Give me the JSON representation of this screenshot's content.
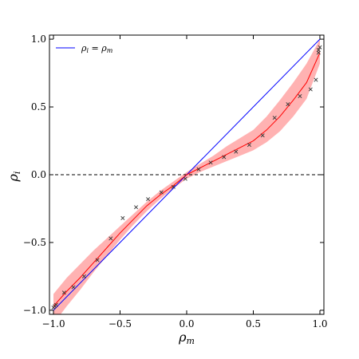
{
  "chart_data": {
    "type": "line",
    "title": "",
    "xlabel": "ρ_m",
    "ylabel": "ρ_i",
    "xlim": [
      -1.03,
      1.03
    ],
    "ylim": [
      -1.03,
      1.03
    ],
    "grid": false,
    "legend_placement": "top-left",
    "xticks": [
      -1.0,
      -0.5,
      0.0,
      0.5,
      1.0
    ],
    "xtick_labels": [
      "−1.0",
      "−0.5",
      "0.0",
      "0.5",
      "1.0"
    ],
    "yticks": [
      -1.0,
      -0.5,
      0.0,
      0.5,
      1.0
    ],
    "ytick_labels": [
      "−1.0",
      "−0.5",
      "0.0",
      "0.5",
      "1.0"
    ],
    "series": [
      {
        "name": "ρ_i = ρ_m",
        "kind": "line",
        "color": "#0000ff",
        "x": [
          -1.0,
          1.0
        ],
        "y": [
          -1.0,
          1.0
        ]
      },
      {
        "kind": "line",
        "color": "#ff0000",
        "x": [
          -1.0,
          -0.9,
          -0.8,
          -0.7,
          -0.6,
          -0.5,
          -0.4,
          -0.3,
          -0.2,
          -0.1,
          0.0,
          0.1,
          0.2,
          0.3,
          0.4,
          0.5,
          0.6,
          0.7,
          0.8,
          0.9,
          1.0
        ],
        "y": [
          -0.97,
          -0.86,
          -0.76,
          -0.65,
          -0.54,
          -0.43,
          -0.33,
          -0.23,
          -0.15,
          -0.08,
          0.0,
          0.05,
          0.1,
          0.15,
          0.2,
          0.25,
          0.33,
          0.43,
          0.55,
          0.68,
          0.9
        ]
      },
      {
        "kind": "band",
        "color": "#ff0000",
        "x": [
          -1.0,
          -0.9,
          -0.8,
          -0.7,
          -0.6,
          -0.5,
          -0.4,
          -0.3,
          -0.2,
          -0.1,
          0.0,
          0.1,
          0.2,
          0.3,
          0.4,
          0.5,
          0.6,
          0.7,
          0.8,
          0.9,
          1.0
        ],
        "y_low": [
          -1.1,
          -0.97,
          -0.85,
          -0.72,
          -0.6,
          -0.48,
          -0.37,
          -0.27,
          -0.18,
          -0.1,
          -0.03,
          0.02,
          0.06,
          0.1,
          0.14,
          0.18,
          0.24,
          0.32,
          0.43,
          0.56,
          0.82
        ],
        "y_high": [
          -0.88,
          -0.76,
          -0.66,
          -0.56,
          -0.47,
          -0.38,
          -0.29,
          -0.2,
          -0.12,
          -0.05,
          0.02,
          0.08,
          0.14,
          0.21,
          0.27,
          0.33,
          0.43,
          0.55,
          0.68,
          0.82,
          1.0
        ]
      },
      {
        "kind": "scatter",
        "marker": "x",
        "color": "#333333",
        "x": [
          -1.0,
          -0.99,
          -0.98,
          -0.92,
          -0.85,
          -0.77,
          -0.67,
          -0.57,
          -0.48,
          -0.38,
          -0.29,
          -0.19,
          -0.1,
          -0.01,
          0.09,
          0.18,
          0.28,
          0.37,
          0.47,
          0.57,
          0.66,
          0.76,
          0.85,
          0.93,
          0.97,
          0.99,
          0.99,
          1.0
        ],
        "y": [
          -0.98,
          -0.97,
          -0.96,
          -0.87,
          -0.83,
          -0.75,
          -0.63,
          -0.47,
          -0.32,
          -0.24,
          -0.18,
          -0.13,
          -0.09,
          -0.03,
          0.04,
          0.09,
          0.13,
          0.17,
          0.22,
          0.29,
          0.42,
          0.52,
          0.58,
          0.63,
          0.7,
          0.9,
          0.92,
          0.94
        ]
      },
      {
        "kind": "reference-line",
        "style": "dashed",
        "color": "#000000",
        "y": 0.0
      }
    ]
  }
}
